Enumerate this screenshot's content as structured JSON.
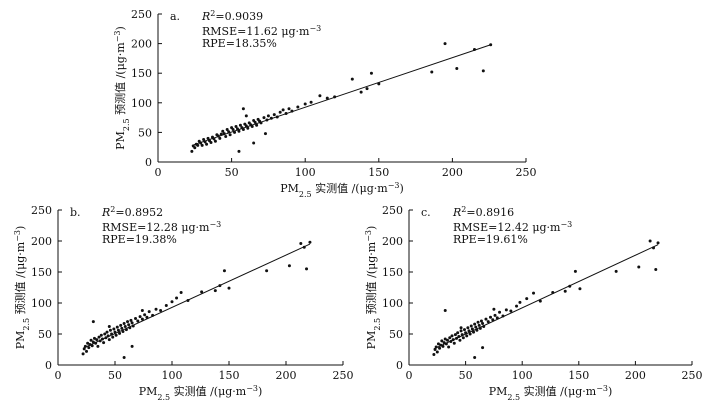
{
  "colors": {
    "axis": "#111111",
    "point": "#111111",
    "fit_line": "#111111",
    "background": "#ffffff"
  },
  "chart_data": [
    {
      "type": "scatter",
      "panel_label": "a.",
      "r2_symbol": "R",
      "r2_exp": "2",
      "r2_value": "=0.9039",
      "rmse_text": "RMSE=11.62 μg·m",
      "rmse_exp": "−3",
      "rpe_text": "RPE=18.35%",
      "xlabel_pre": "PM",
      "xlabel_sub": "2.5",
      "xlabel_post": " 实测值 /(μg·m",
      "xlabel_exp": "−3",
      "xlabel_end": ")",
      "ylabel_pre": "PM",
      "ylabel_sub": "2.5",
      "ylabel_post": " 预测值 /(μg·m",
      "ylabel_exp": "−3",
      "ylabel_end": ")",
      "xlim": [
        0,
        250
      ],
      "ylim": [
        0,
        250
      ],
      "xticks": [
        0,
        50,
        100,
        150,
        200,
        250
      ],
      "yticks": [
        0,
        50,
        100,
        150,
        200,
        250
      ],
      "fit_line": [
        [
          23,
          28
        ],
        [
          226,
          198
        ]
      ],
      "points": [
        [
          23,
          18
        ],
        [
          24,
          27
        ],
        [
          25,
          24
        ],
        [
          26,
          30
        ],
        [
          27,
          28
        ],
        [
          28,
          35
        ],
        [
          29,
          32
        ],
        [
          30,
          28
        ],
        [
          31,
          38
        ],
        [
          32,
          34
        ],
        [
          33,
          30
        ],
        [
          34,
          40
        ],
        [
          35,
          36
        ],
        [
          36,
          33
        ],
        [
          37,
          42
        ],
        [
          38,
          39
        ],
        [
          39,
          35
        ],
        [
          40,
          46
        ],
        [
          41,
          44
        ],
        [
          42,
          40
        ],
        [
          43,
          47
        ],
        [
          44,
          52
        ],
        [
          45,
          48
        ],
        [
          46,
          43
        ],
        [
          47,
          55
        ],
        [
          48,
          51
        ],
        [
          49,
          46
        ],
        [
          50,
          58
        ],
        [
          51,
          55
        ],
        [
          52,
          50
        ],
        [
          53,
          60
        ],
        [
          54,
          56
        ],
        [
          55,
          52
        ],
        [
          56,
          62
        ],
        [
          57,
          58
        ],
        [
          58,
          55
        ],
        [
          59,
          64
        ],
        [
          60,
          61
        ],
        [
          61,
          57
        ],
        [
          62,
          66
        ],
        [
          63,
          63
        ],
        [
          64,
          60
        ],
        [
          65,
          70
        ],
        [
          66,
          67
        ],
        [
          67,
          62
        ],
        [
          68,
          72
        ],
        [
          69,
          69
        ],
        [
          70,
          66
        ],
        [
          72,
          75
        ],
        [
          74,
          71
        ],
        [
          75,
          78
        ],
        [
          77,
          74
        ],
        [
          79,
          80
        ],
        [
          81,
          76
        ],
        [
          83,
          84
        ],
        [
          85,
          88
        ],
        [
          87,
          82
        ],
        [
          89,
          90
        ],
        [
          91,
          86
        ],
        [
          95,
          93
        ],
        [
          100,
          98
        ],
        [
          104,
          101
        ],
        [
          110,
          112
        ],
        [
          115,
          108
        ],
        [
          120,
          110
        ],
        [
          132,
          140
        ],
        [
          138,
          118
        ],
        [
          142,
          124
        ],
        [
          145,
          150
        ],
        [
          150,
          132
        ],
        [
          186,
          152
        ],
        [
          195,
          200
        ],
        [
          203,
          158
        ],
        [
          215,
          190
        ],
        [
          221,
          154
        ],
        [
          226,
          198
        ],
        [
          55,
          18
        ],
        [
          65,
          32
        ],
        [
          73,
          48
        ],
        [
          60,
          78
        ],
        [
          58,
          90
        ]
      ]
    },
    {
      "type": "scatter",
      "panel_label": "b.",
      "r2_symbol": "R",
      "r2_exp": "2",
      "r2_value": "=0.8952",
      "rmse_text": "RMSE=12.28 μg·m",
      "rmse_exp": "−3",
      "rpe_text": "RPE=19.38%",
      "xlabel_pre": "PM",
      "xlabel_sub": "2.5",
      "xlabel_post": " 实测值 /(μg·m",
      "xlabel_exp": "−3",
      "xlabel_end": ")",
      "ylabel_pre": "PM",
      "ylabel_sub": "2.5",
      "ylabel_post": " 预测值 /(μg·m",
      "ylabel_exp": "−3",
      "ylabel_end": ")",
      "xlim": [
        0,
        250
      ],
      "ylim": [
        0,
        250
      ],
      "xticks": [
        0,
        50,
        100,
        150,
        200,
        250
      ],
      "yticks": [
        0,
        50,
        100,
        150,
        200,
        250
      ],
      "fit_line": [
        [
          22,
          27
        ],
        [
          221,
          195
        ]
      ],
      "points": [
        [
          22,
          18
        ],
        [
          23,
          26
        ],
        [
          24,
          30
        ],
        [
          25,
          22
        ],
        [
          26,
          35
        ],
        [
          27,
          28
        ],
        [
          28,
          33
        ],
        [
          29,
          40
        ],
        [
          30,
          31
        ],
        [
          31,
          37
        ],
        [
          32,
          43
        ],
        [
          33,
          35
        ],
        [
          34,
          41
        ],
        [
          35,
          30
        ],
        [
          36,
          45
        ],
        [
          37,
          39
        ],
        [
          38,
          48
        ],
        [
          39,
          42
        ],
        [
          40,
          36
        ],
        [
          41,
          50
        ],
        [
          42,
          44
        ],
        [
          43,
          53
        ],
        [
          44,
          47
        ],
        [
          45,
          41
        ],
        [
          46,
          56
        ],
        [
          47,
          50
        ],
        [
          48,
          45
        ],
        [
          49,
          58
        ],
        [
          50,
          53
        ],
        [
          51,
          48
        ],
        [
          52,
          61
        ],
        [
          53,
          56
        ],
        [
          54,
          51
        ],
        [
          55,
          64
        ],
        [
          56,
          59
        ],
        [
          57,
          54
        ],
        [
          58,
          67
        ],
        [
          59,
          62
        ],
        [
          60,
          57
        ],
        [
          61,
          70
        ],
        [
          62,
          65
        ],
        [
          63,
          60
        ],
        [
          64,
          72
        ],
        [
          65,
          68
        ],
        [
          66,
          63
        ],
        [
          68,
          75
        ],
        [
          70,
          71
        ],
        [
          72,
          78
        ],
        [
          74,
          74
        ],
        [
          76,
          81
        ],
        [
          78,
          77
        ],
        [
          80,
          86
        ],
        [
          83,
          80
        ],
        [
          86,
          90
        ],
        [
          90,
          88
        ],
        [
          95,
          96
        ],
        [
          100,
          102
        ],
        [
          104,
          108
        ],
        [
          108,
          117
        ],
        [
          114,
          104
        ],
        [
          126,
          118
        ],
        [
          138,
          120
        ],
        [
          142,
          128
        ],
        [
          146,
          152
        ],
        [
          150,
          124
        ],
        [
          183,
          152
        ],
        [
          203,
          160
        ],
        [
          213,
          196
        ],
        [
          216,
          190
        ],
        [
          218,
          155
        ],
        [
          221,
          198
        ],
        [
          58,
          12
        ],
        [
          65,
          30
        ],
        [
          31,
          70
        ],
        [
          45,
          62
        ],
        [
          74,
          88
        ]
      ]
    },
    {
      "type": "scatter",
      "panel_label": "c.",
      "r2_symbol": "R",
      "r2_exp": "2",
      "r2_value": "=0.8916",
      "rmse_text": "RMSE=12.42 μg·m",
      "rmse_exp": "−3",
      "rpe_text": "RPE=19.61%",
      "xlabel_pre": "PM",
      "xlabel_sub": "2.5",
      "xlabel_post": " 实测值 /(μg·m",
      "xlabel_exp": "−3",
      "xlabel_end": ")",
      "ylabel_pre": "PM",
      "ylabel_sub": "2.5",
      "ylabel_post": " 预测值 /(μg·m",
      "ylabel_exp": "−3",
      "ylabel_end": ")",
      "xlim": [
        0,
        250
      ],
      "ylim": [
        0,
        250
      ],
      "xticks": [
        0,
        50,
        100,
        150,
        200,
        250
      ],
      "yticks": [
        0,
        50,
        100,
        150,
        200,
        250
      ],
      "fit_line": [
        [
          22,
          26
        ],
        [
          220,
          194
        ]
      ],
      "points": [
        [
          22,
          17
        ],
        [
          23,
          25
        ],
        [
          24,
          29
        ],
        [
          25,
          21
        ],
        [
          26,
          34
        ],
        [
          27,
          27
        ],
        [
          28,
          32
        ],
        [
          29,
          39
        ],
        [
          30,
          30
        ],
        [
          31,
          36
        ],
        [
          32,
          42
        ],
        [
          33,
          34
        ],
        [
          34,
          40
        ],
        [
          35,
          29
        ],
        [
          36,
          44
        ],
        [
          37,
          38
        ],
        [
          38,
          47
        ],
        [
          39,
          41
        ],
        [
          40,
          35
        ],
        [
          41,
          49
        ],
        [
          42,
          43
        ],
        [
          43,
          52
        ],
        [
          44,
          46
        ],
        [
          45,
          40
        ],
        [
          46,
          55
        ],
        [
          47,
          49
        ],
        [
          48,
          44
        ],
        [
          49,
          57
        ],
        [
          50,
          52
        ],
        [
          51,
          47
        ],
        [
          52,
          60
        ],
        [
          53,
          55
        ],
        [
          54,
          50
        ],
        [
          55,
          63
        ],
        [
          56,
          58
        ],
        [
          57,
          53
        ],
        [
          58,
          66
        ],
        [
          59,
          61
        ],
        [
          60,
          56
        ],
        [
          61,
          69
        ],
        [
          62,
          64
        ],
        [
          63,
          59
        ],
        [
          64,
          71
        ],
        [
          65,
          67
        ],
        [
          66,
          62
        ],
        [
          68,
          74
        ],
        [
          70,
          70
        ],
        [
          72,
          77
        ],
        [
          74,
          73
        ],
        [
          76,
          80
        ],
        [
          78,
          76
        ],
        [
          80,
          85
        ],
        [
          83,
          79
        ],
        [
          86,
          89
        ],
        [
          90,
          87
        ],
        [
          95,
          95
        ],
        [
          98,
          101
        ],
        [
          104,
          107
        ],
        [
          110,
          116
        ],
        [
          116,
          103
        ],
        [
          127,
          117
        ],
        [
          138,
          119
        ],
        [
          142,
          127
        ],
        [
          147,
          151
        ],
        [
          151,
          123
        ],
        [
          183,
          151
        ],
        [
          203,
          158
        ],
        [
          213,
          200
        ],
        [
          216,
          189
        ],
        [
          218,
          154
        ],
        [
          220,
          197
        ],
        [
          58,
          12
        ],
        [
          65,
          28
        ],
        [
          32,
          88
        ],
        [
          46,
          60
        ],
        [
          75,
          90
        ]
      ]
    }
  ]
}
